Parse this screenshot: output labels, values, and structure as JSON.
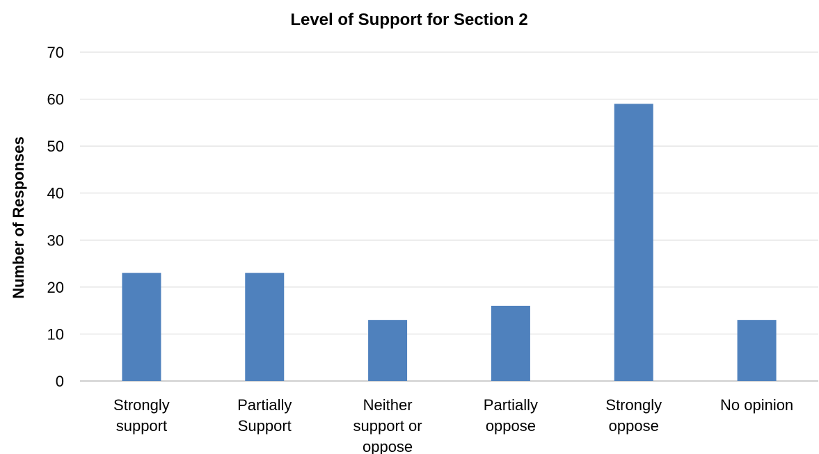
{
  "chart_data": {
    "type": "bar",
    "title": "Level of Support for Section 2",
    "xlabel": "",
    "ylabel": "Number of Responses",
    "categories": [
      [
        "Strongly",
        "support"
      ],
      [
        "Partially",
        "Support"
      ],
      [
        "Neither",
        "support or",
        "oppose"
      ],
      [
        "Partially",
        "oppose"
      ],
      [
        "Strongly",
        "oppose"
      ],
      [
        "No opinion"
      ]
    ],
    "values": [
      23,
      23,
      13,
      16,
      59,
      13
    ],
    "ylim": [
      0,
      70
    ],
    "yticks": [
      0,
      10,
      20,
      30,
      40,
      50,
      60,
      70
    ],
    "grid": true,
    "legend": "none",
    "bar_color": "#4f81bd",
    "grid_color": "#d9d9d9",
    "axis_color": "#bfbfbf"
  }
}
